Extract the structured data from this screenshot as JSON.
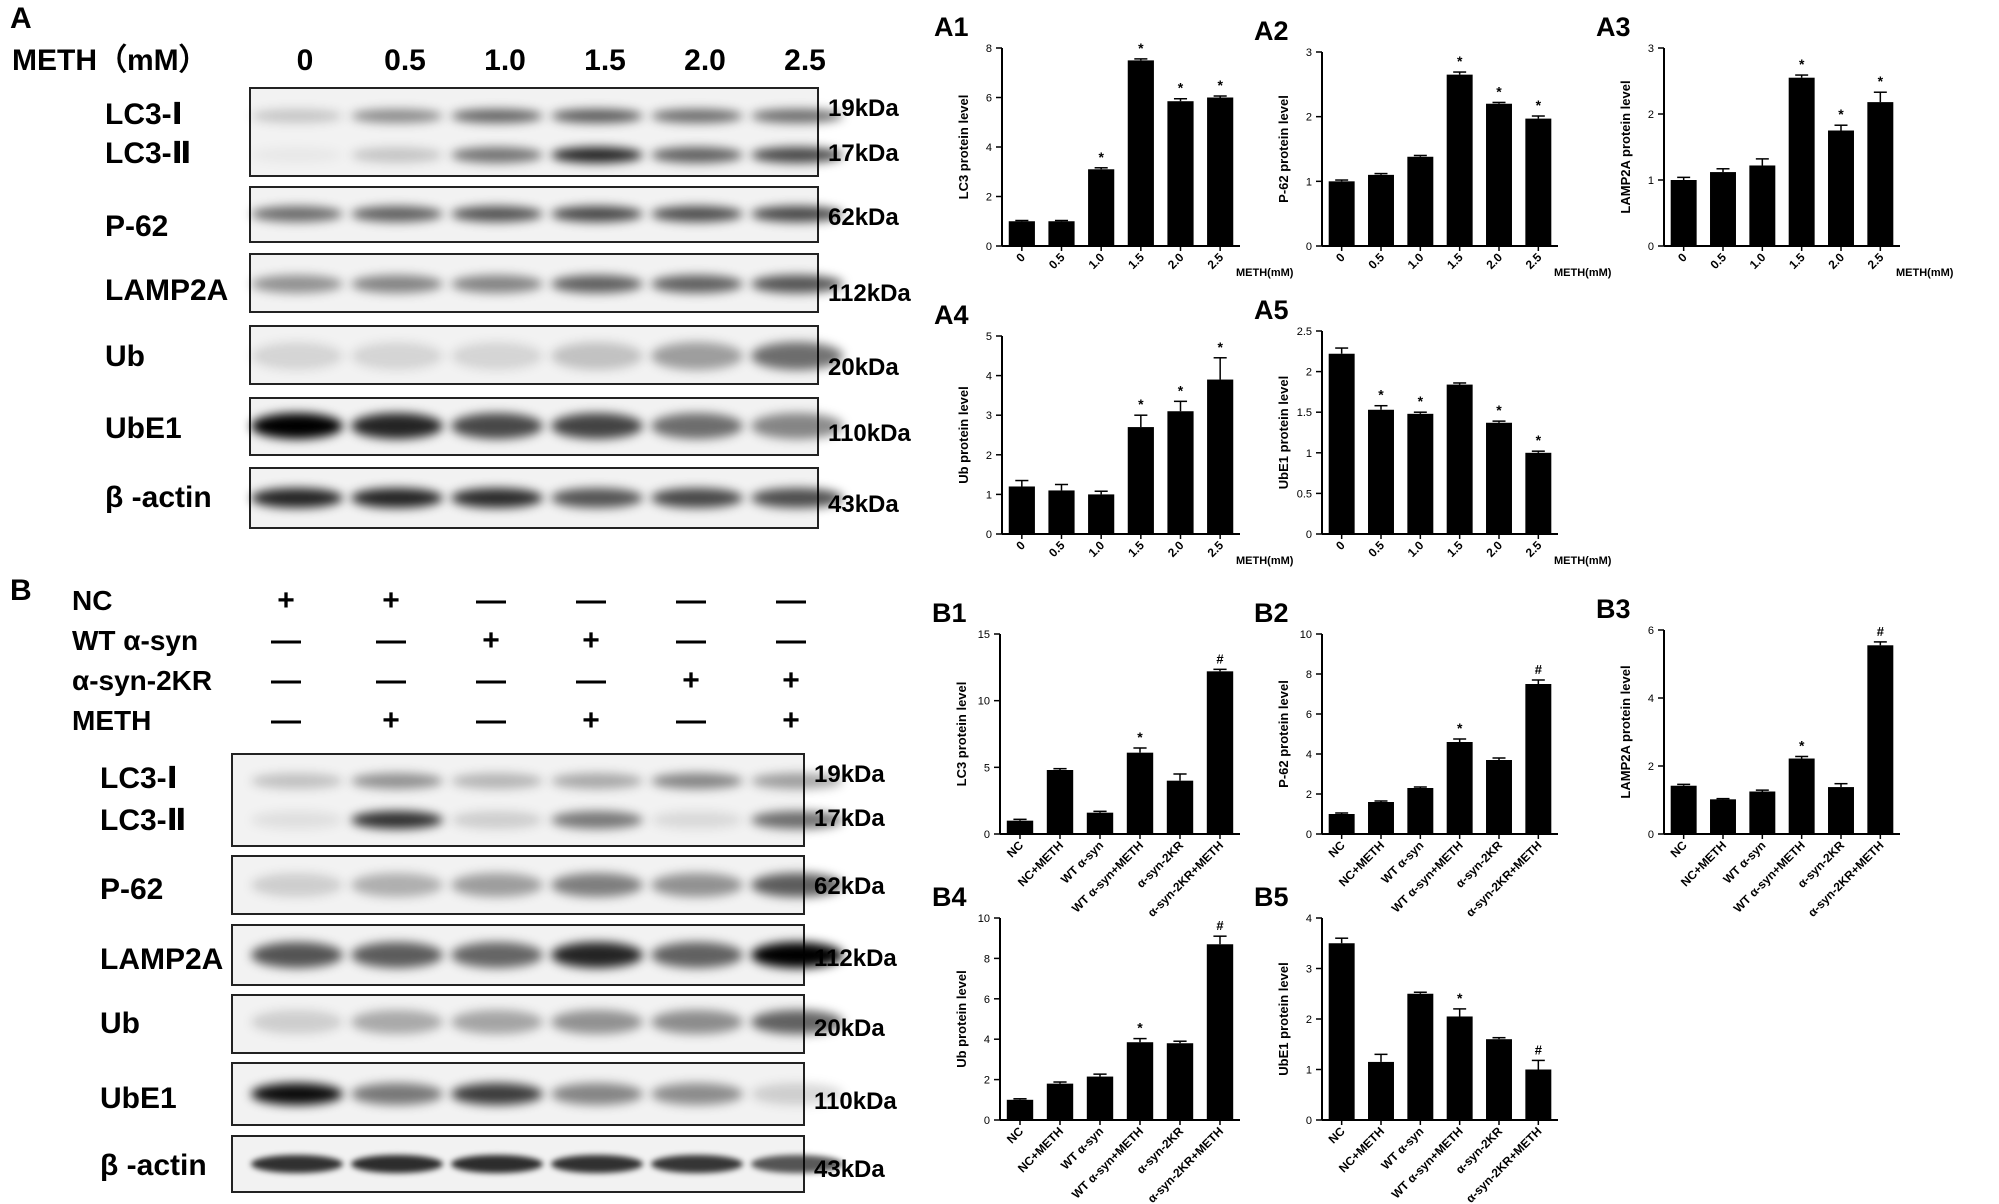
{
  "panel_a": {
    "letter": "A",
    "conc_label": "METH（mM）",
    "concentrations": [
      "0",
      "0.5",
      "1.0",
      "1.5",
      "2.0",
      "2.5"
    ],
    "blots": [
      {
        "rows": [
          "LC3-Ⅰ",
          "LC3-Ⅱ"
        ],
        "sizes": [
          "19kDa",
          "17kDa"
        ]
      },
      {
        "rows": [
          "P-62"
        ],
        "sizes": [
          "62kDa"
        ]
      },
      {
        "rows": [
          "LAMP2A"
        ],
        "sizes": [
          "112kDa"
        ]
      },
      {
        "rows": [
          "Ub"
        ],
        "sizes": [
          "20kDa"
        ]
      },
      {
        "rows": [
          "UbE1"
        ],
        "sizes": [
          "110kDa"
        ]
      },
      {
        "rows": [
          "β -actin"
        ],
        "sizes": [
          "43kDa"
        ]
      }
    ]
  },
  "panel_b": {
    "letter": "B",
    "conditions": [
      {
        "name": "NC",
        "marks": [
          "+",
          "+",
          "—",
          "—",
          "—",
          "—"
        ]
      },
      {
        "name": "WT α-syn",
        "marks": [
          "—",
          "—",
          "+",
          "+",
          "—",
          "—"
        ]
      },
      {
        "name": "α-syn-2KR",
        "marks": [
          "—",
          "—",
          "—",
          "—",
          "+",
          "+"
        ]
      },
      {
        "name": "METH",
        "marks": [
          "—",
          "+",
          "—",
          "+",
          "—",
          "+"
        ]
      }
    ],
    "blots": [
      {
        "rows": [
          "LC3-Ⅰ",
          "LC3-Ⅱ"
        ],
        "sizes": [
          "19kDa",
          "17kDa"
        ]
      },
      {
        "rows": [
          "P-62"
        ],
        "sizes": [
          "62kDa"
        ]
      },
      {
        "rows": [
          "LAMP2A"
        ],
        "sizes": [
          "112kDa"
        ]
      },
      {
        "rows": [
          "Ub"
        ],
        "sizes": [
          "20kDa"
        ]
      },
      {
        "rows": [
          "UbE1"
        ],
        "sizes": [
          "110kDa"
        ]
      },
      {
        "rows": [
          "β -actin"
        ],
        "sizes": [
          "43kDa"
        ]
      }
    ]
  },
  "chart_data": [
    {
      "type": "bar",
      "panel": "A1",
      "ylabel": "LC3 protein level",
      "xlabel": "METH(mM)",
      "categories": [
        "0",
        "0.5",
        "1.0",
        "1.5",
        "2.0",
        "2.5"
      ],
      "values": [
        1.0,
        1.0,
        3.1,
        7.5,
        5.85,
        6.0
      ],
      "errors": [
        0.03,
        0.03,
        0.06,
        0.06,
        0.1,
        0.06
      ],
      "marks": [
        "",
        "",
        "*",
        "*",
        "*",
        "*"
      ],
      "ylim": [
        0,
        8
      ],
      "yticks": [
        0,
        2,
        4,
        6,
        8
      ]
    },
    {
      "type": "bar",
      "panel": "A2",
      "ylabel": "P-62 protein level",
      "xlabel": "METH(mM)",
      "categories": [
        "0",
        "0.5",
        "1.0",
        "1.5",
        "2.0",
        "2.5"
      ],
      "values": [
        1.0,
        1.1,
        1.38,
        2.65,
        2.2,
        1.97
      ],
      "errors": [
        0.02,
        0.02,
        0.02,
        0.04,
        0.02,
        0.04
      ],
      "marks": [
        "",
        "",
        "",
        "*",
        "*",
        "*"
      ],
      "ylim": [
        0,
        3
      ],
      "yticks": [
        0,
        1,
        2,
        3
      ]
    },
    {
      "type": "bar",
      "panel": "A3",
      "ylabel": "LAMP2A protein level",
      "xlabel": "METH(mM)",
      "categories": [
        "0",
        "0.5",
        "1.0",
        "1.5",
        "2.0",
        "2.5"
      ],
      "values": [
        1.0,
        1.12,
        1.22,
        2.55,
        1.75,
        2.18
      ],
      "errors": [
        0.04,
        0.05,
        0.1,
        0.04,
        0.08,
        0.15
      ],
      "marks": [
        "",
        "",
        "",
        "*",
        "*",
        "*"
      ],
      "ylim": [
        0,
        3
      ],
      "yticks": [
        0,
        1,
        2,
        3
      ]
    },
    {
      "type": "bar",
      "panel": "A4",
      "ylabel": "Ub protein level",
      "xlabel": "METH(mM)",
      "categories": [
        "0",
        "0.5",
        "1.0",
        "1.5",
        "2.0",
        "2.5"
      ],
      "values": [
        1.2,
        1.1,
        1.0,
        2.7,
        3.1,
        3.9
      ],
      "errors": [
        0.15,
        0.15,
        0.08,
        0.3,
        0.25,
        0.55
      ],
      "marks": [
        "",
        "",
        "",
        "*",
        "*",
        "*"
      ],
      "ylim": [
        0,
        5
      ],
      "yticks": [
        0,
        1,
        2,
        3,
        4,
        5
      ]
    },
    {
      "type": "bar",
      "panel": "A5",
      "ylabel": "UbE1 protein level",
      "xlabel": "METH(mM)",
      "categories": [
        "0",
        "0.5",
        "1.0",
        "1.5",
        "2.0",
        "2.5"
      ],
      "values": [
        2.22,
        1.53,
        1.48,
        1.84,
        1.37,
        1.0
      ],
      "errors": [
        0.07,
        0.05,
        0.02,
        0.02,
        0.02,
        0.02
      ],
      "marks": [
        "",
        "*",
        "*",
        "",
        "*",
        "*"
      ],
      "ylim": [
        0,
        2.5
      ],
      "yticks": [
        0,
        0.5,
        1.0,
        1.5,
        2.0,
        2.5
      ]
    },
    {
      "type": "bar",
      "panel": "B1",
      "ylabel": "LC3 protein level",
      "categories": [
        "NC",
        "NC+METH",
        "WT α-syn",
        "WT α-syn+METH",
        "α-syn-2KR",
        "α-syn-2KR+METH"
      ],
      "values": [
        1.0,
        4.8,
        1.6,
        6.1,
        4.0,
        12.2
      ],
      "errors": [
        0.1,
        0.1,
        0.1,
        0.35,
        0.5,
        0.15
      ],
      "marks": [
        "",
        "",
        "",
        "*",
        "",
        "#"
      ],
      "ylim": [
        0,
        15
      ],
      "yticks": [
        0,
        5,
        10,
        15
      ]
    },
    {
      "type": "bar",
      "panel": "B2",
      "ylabel": "P-62 protein level",
      "categories": [
        "NC",
        "NC+METH",
        "WT α-syn",
        "WT α-syn+METH",
        "α-syn-2KR",
        "α-syn-2KR+METH"
      ],
      "values": [
        1.0,
        1.6,
        2.3,
        4.6,
        3.7,
        7.5
      ],
      "errors": [
        0.05,
        0.05,
        0.05,
        0.15,
        0.1,
        0.2
      ],
      "marks": [
        "",
        "",
        "",
        "*",
        "",
        "#"
      ],
      "ylim": [
        0,
        10
      ],
      "yticks": [
        0,
        2,
        4,
        6,
        8,
        10
      ]
    },
    {
      "type": "bar",
      "panel": "B3",
      "ylabel": "LAMP2A protein level",
      "categories": [
        "NC",
        "NC+METH",
        "WT α-syn",
        "WT α-syn+METH",
        "α-syn-2KR",
        "α-syn-2KR+METH"
      ],
      "values": [
        1.42,
        1.02,
        1.25,
        2.22,
        1.38,
        5.55
      ],
      "errors": [
        0.04,
        0.02,
        0.04,
        0.06,
        0.1,
        0.1
      ],
      "marks": [
        "",
        "",
        "",
        "*",
        "",
        "#"
      ],
      "ylim": [
        0,
        6
      ],
      "yticks": [
        0,
        2,
        4,
        6
      ]
    },
    {
      "type": "bar",
      "panel": "B4",
      "ylabel": "Ub protein level",
      "categories": [
        "NC",
        "NC+METH",
        "WT α-syn",
        "WT α-syn+METH",
        "α-syn-2KR",
        "α-syn-2KR+METH"
      ],
      "values": [
        1.0,
        1.8,
        2.15,
        3.85,
        3.8,
        8.7
      ],
      "errors": [
        0.05,
        0.08,
        0.12,
        0.18,
        0.1,
        0.4
      ],
      "marks": [
        "",
        "",
        "",
        "*",
        "",
        "#"
      ],
      "ylim": [
        0,
        10
      ],
      "yticks": [
        0,
        2,
        4,
        6,
        8,
        10
      ]
    },
    {
      "type": "bar",
      "panel": "B5",
      "ylabel": "UbE1 protein level",
      "categories": [
        "NC",
        "NC+METH",
        "WT α-syn",
        "WT α-syn+METH",
        "α-syn-2KR",
        "α-syn-2KR+METH"
      ],
      "values": [
        3.5,
        1.15,
        2.5,
        2.05,
        1.6,
        1.0
      ],
      "errors": [
        0.1,
        0.15,
        0.03,
        0.15,
        0.03,
        0.18
      ],
      "marks": [
        "",
        "",
        "",
        "*",
        "",
        "#"
      ],
      "ylim": [
        0,
        4
      ],
      "yticks": [
        0,
        1,
        2,
        3,
        4
      ]
    }
  ]
}
